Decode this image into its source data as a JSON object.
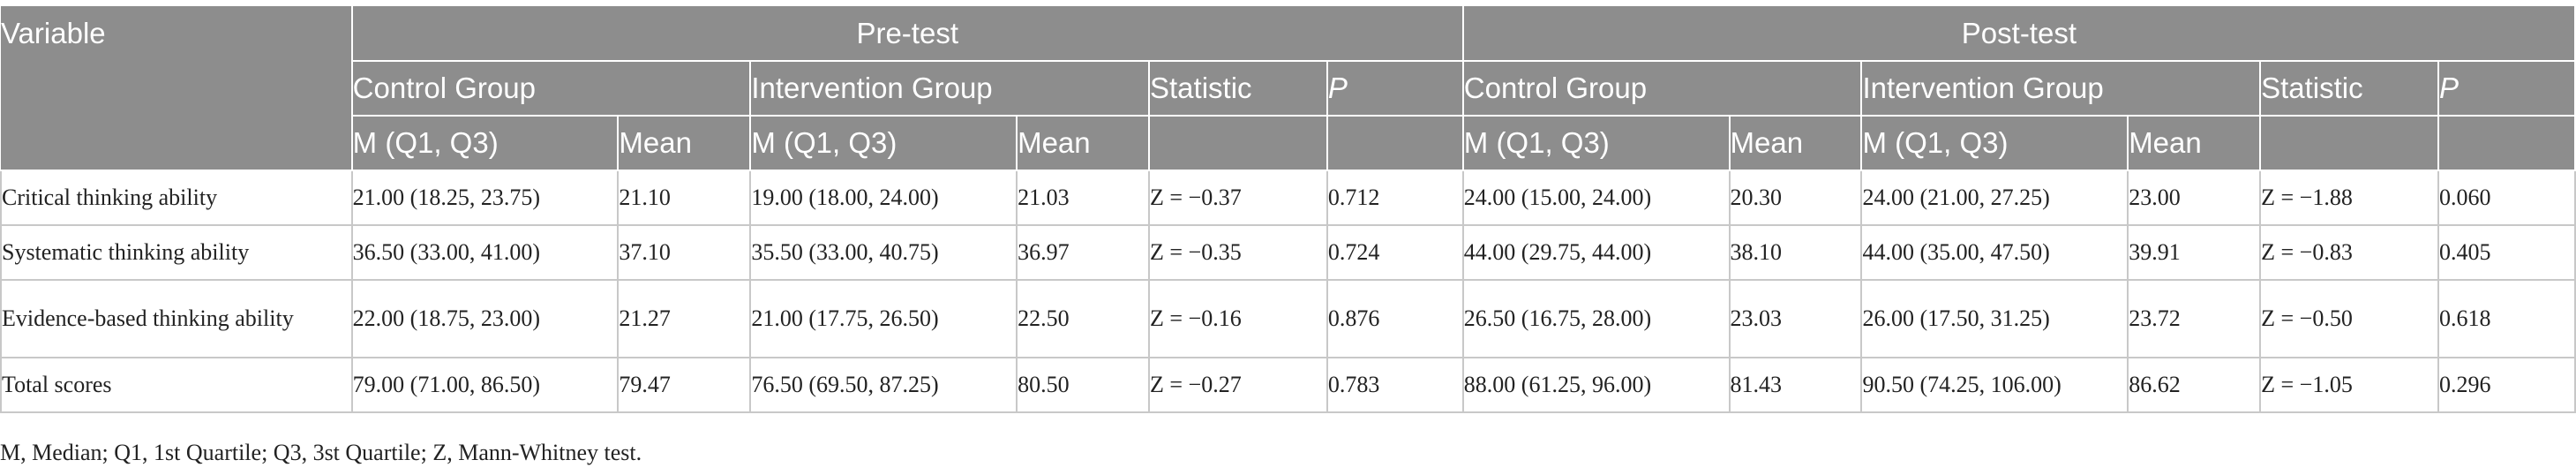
{
  "header": {
    "variable": "Variable",
    "pretest": "Pre-test",
    "posttest": "Post-test",
    "control_group": "Control Group",
    "intervention_group": "Intervention Group",
    "statistic": "Statistic",
    "p": "P",
    "m_q1_q3": "M (Q1, Q3)",
    "mean": "Mean"
  },
  "rows": [
    {
      "variable": "Critical thinking ability",
      "pre_control_m": "21.00 (18.25, 23.75)",
      "pre_control_mean": "21.10",
      "pre_intervention_m": "19.00 (18.00, 24.00)",
      "pre_intervention_mean": "21.03",
      "pre_statistic": "Z = −0.37",
      "pre_p": "0.712",
      "post_control_m": "24.00 (15.00, 24.00)",
      "post_control_mean": "20.30",
      "post_intervention_m": "24.00 (21.00, 27.25)",
      "post_intervention_mean": "23.00",
      "post_statistic": "Z = −1.88",
      "post_p": "0.060"
    },
    {
      "variable": "Systematic thinking ability",
      "pre_control_m": "36.50 (33.00, 41.00)",
      "pre_control_mean": "37.10",
      "pre_intervention_m": "35.50 (33.00, 40.75)",
      "pre_intervention_mean": "36.97",
      "pre_statistic": "Z = −0.35",
      "pre_p": "0.724",
      "post_control_m": "44.00 (29.75, 44.00)",
      "post_control_mean": "38.10",
      "post_intervention_m": "44.00 (35.00, 47.50)",
      "post_intervention_mean": "39.91",
      "post_statistic": "Z = −0.83",
      "post_p": "0.405"
    },
    {
      "variable": "Evidence-based thinking ability",
      "pre_control_m": "22.00 (18.75, 23.00)",
      "pre_control_mean": "21.27",
      "pre_intervention_m": "21.00 (17.75, 26.50)",
      "pre_intervention_mean": "22.50",
      "pre_statistic": "Z = −0.16",
      "pre_p": "0.876",
      "post_control_m": "26.50 (16.75, 28.00)",
      "post_control_mean": "23.03",
      "post_intervention_m": "26.00 (17.50, 31.25)",
      "post_intervention_mean": "23.72",
      "post_statistic": "Z = −0.50",
      "post_p": "0.618"
    },
    {
      "variable": "Total scores",
      "pre_control_m": "79.00 (71.00, 86.50)",
      "pre_control_mean": "79.47",
      "pre_intervention_m": "76.50 (69.50, 87.25)",
      "pre_intervention_mean": "80.50",
      "pre_statistic": "Z = −0.27",
      "pre_p": "0.783",
      "post_control_m": "88.00 (61.25, 96.00)",
      "post_control_mean": "81.43",
      "post_intervention_m": "90.50 (74.25, 106.00)",
      "post_intervention_mean": "86.62",
      "post_statistic": "Z = −1.05",
      "post_p": "0.296"
    }
  ],
  "footnote": "M, Median; Q1, 1st Quartile; Q3, 3st Quartile; Z, Mann-Whitney test."
}
